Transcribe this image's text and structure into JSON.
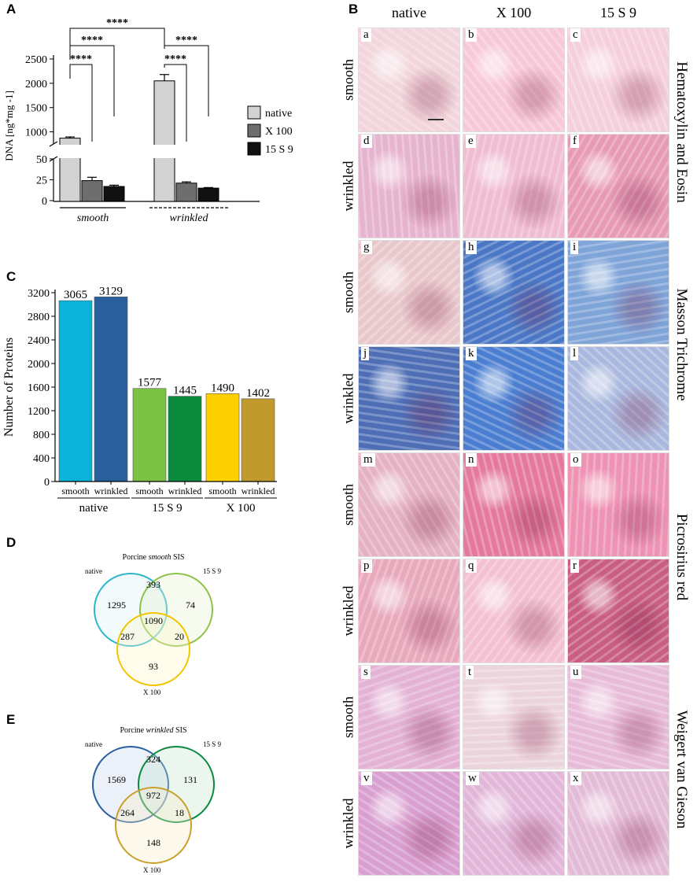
{
  "panels": {
    "A": "A",
    "B": "B",
    "C": "C",
    "D": "D",
    "E": "E"
  },
  "panelA": {
    "ylabel": "DNA [ng*mg -1]",
    "yticks_upper": [
      "2500",
      "2000",
      "1500",
      "1000"
    ],
    "yticks_lower": [
      "50",
      "25",
      "0"
    ],
    "groups": [
      "smooth",
      "wrinkled"
    ],
    "significance": "****",
    "legend": [
      "native",
      "X 100",
      "15 S 9"
    ],
    "colors": {
      "native": "#d2d2d2",
      "X 100": "#6e6e6e",
      "15 S 9": "#111111"
    }
  },
  "panelC": {
    "ylabel": "Number of Proteins",
    "yticks": [
      "3200",
      "2800",
      "2400",
      "2000",
      "1600",
      "1200",
      "800",
      "400",
      "0"
    ],
    "groups": [
      "native",
      "15 S 9",
      "X 100"
    ],
    "sub": [
      "smooth",
      "wrinkled"
    ]
  },
  "panelD": {
    "title_prefix": "Porcine ",
    "title_em": "smooth",
    "title_suffix": " SIS",
    "set_labels": [
      "native",
      "15 S 9",
      "X 100"
    ],
    "counts": [
      "1295",
      "393",
      "74",
      "287",
      "1090",
      "20",
      "93"
    ]
  },
  "panelE": {
    "title_prefix": "Porcine ",
    "title_em": "wrinkled",
    "title_suffix": " SIS",
    "set_labels": [
      "native",
      "15 S 9",
      "X 100"
    ],
    "counts": [
      "1569",
      "324",
      "131",
      "264",
      "972",
      "18",
      "148"
    ]
  },
  "panelB": {
    "columns": [
      "native",
      "X 100",
      "15 S 9"
    ],
    "row_labels": [
      "smooth",
      "wrinkled",
      "smooth",
      "wrinkled",
      "smooth",
      "wrinkled",
      "smooth",
      "wrinkled"
    ],
    "stains": [
      "Hematoxylin and Eosin",
      "Masson Trichrome",
      "Picrosirius red",
      "Weigert van Gieson"
    ],
    "letters": [
      "a",
      "b",
      "c",
      "d",
      "e",
      "f",
      "g",
      "h",
      "i",
      "j",
      "k",
      "l",
      "m",
      "n",
      "o",
      "p",
      "q",
      "r",
      "s",
      "t",
      "u",
      "v",
      "w",
      "x"
    ]
  },
  "chart_data": [
    {
      "type": "bar",
      "title": "",
      "ylabel": "DNA [ng*mg -1]",
      "xlabel": "",
      "categories": [
        "smooth",
        "wrinkled"
      ],
      "series": [
        {
          "name": "native",
          "values": [
            870,
            2050
          ],
          "errors": [
            25,
            130
          ]
        },
        {
          "name": "X 100",
          "values": [
            24,
            21
          ],
          "errors": [
            4,
            1.5
          ]
        },
        {
          "name": "15 S 9",
          "values": [
            17,
            15
          ],
          "errors": [
            1.5,
            0.7
          ]
        }
      ],
      "ylim": [
        0,
        2500
      ],
      "axis_break": [
        50,
        750
      ],
      "significance": [
        {
          "from": "smooth native",
          "to": "wrinkled native",
          "label": "****"
        },
        {
          "from": "smooth native",
          "to": "smooth X 100",
          "label": "****"
        },
        {
          "from": "smooth native",
          "to": "smooth 15 S 9",
          "label": "****"
        },
        {
          "from": "wrinkled native",
          "to": "wrinkled X 100",
          "label": "****"
        },
        {
          "from": "wrinkled native",
          "to": "wrinkled 15 S 9",
          "label": "****"
        }
      ],
      "legend_position": "right"
    },
    {
      "type": "bar",
      "title": "",
      "ylabel": "Number of Proteins",
      "categories": [
        "native smooth",
        "native wrinkled",
        "15 S 9 smooth",
        "15 S 9 wrinkled",
        "X 100 smooth",
        "X 100 wrinkled"
      ],
      "values": [
        3065,
        3129,
        1577,
        1445,
        1490,
        1402
      ],
      "colors": [
        "#0ab4d8",
        "#2a5f9e",
        "#7bc143",
        "#0a8a3c",
        "#ffd000",
        "#c19a2e"
      ],
      "ylim": [
        0,
        3200
      ]
    }
  ]
}
